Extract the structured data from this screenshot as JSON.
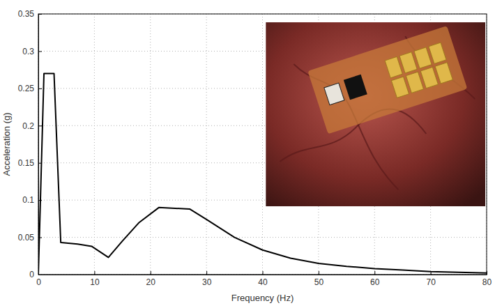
{
  "chart_data": {
    "type": "line",
    "x_label": "Frequency (Hz)",
    "y_label": "Acceleration (g)",
    "x": [
      0,
      1,
      2.8,
      4,
      7,
      9.5,
      12.5,
      15,
      18,
      21.5,
      27,
      30,
      35,
      40,
      45,
      50,
      55,
      60,
      65,
      70,
      75,
      80
    ],
    "values": [
      0,
      0.27,
      0.27,
      0.043,
      0.041,
      0.038,
      0.023,
      0.045,
      0.07,
      0.09,
      0.088,
      0.074,
      0.05,
      0.033,
      0.022,
      0.015,
      0.011,
      0.008,
      0.006,
      0.004,
      0.003,
      0.002
    ],
    "color": "#000000",
    "xlim": [
      0,
      80
    ],
    "xticks": [
      0,
      10,
      20,
      30,
      40,
      50,
      60,
      70,
      80
    ],
    "ylim": [
      0,
      0.35
    ],
    "yticks": [
      0,
      0.05,
      0.1,
      0.15,
      0.2,
      0.25,
      0.3,
      0.35
    ],
    "grid": true
  }
}
